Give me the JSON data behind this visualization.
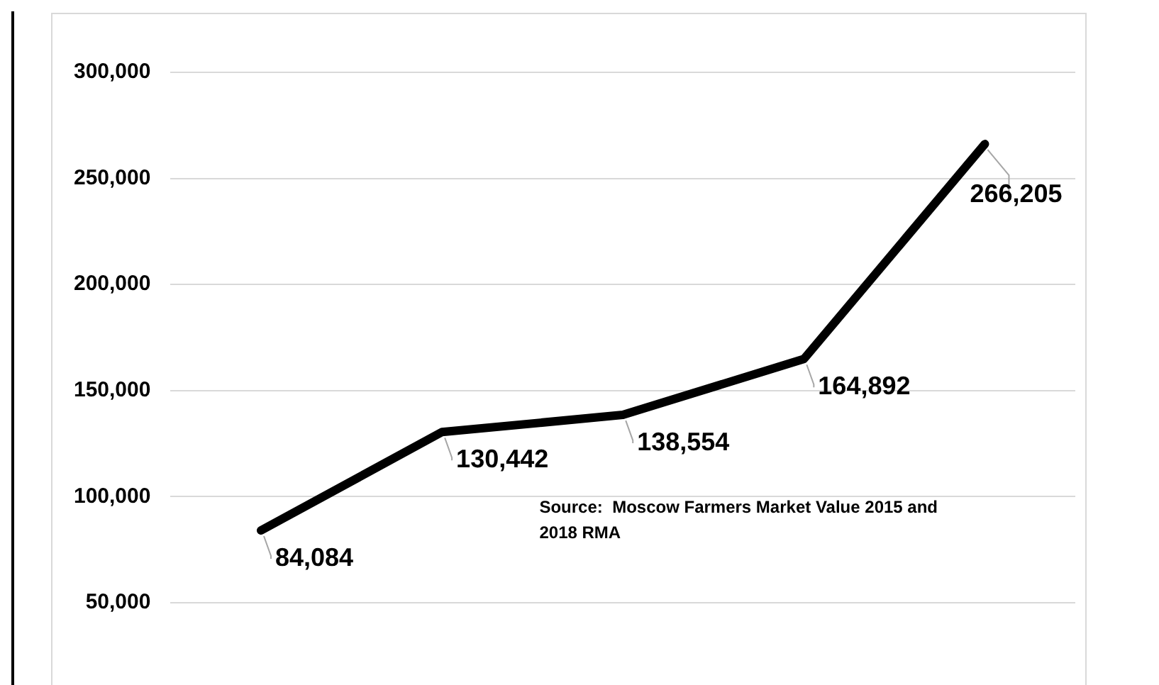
{
  "chart_data": {
    "type": "line",
    "categories": [
      null,
      null,
      null,
      null,
      null
    ],
    "series": [
      {
        "color": "#000000",
        "values": [
          84084,
          130442,
          138554,
          164892,
          266205
        ],
        "value_labels": [
          "84,084",
          "130,442",
          "138,554",
          "164,892",
          "266,205"
        ]
      }
    ],
    "ylim": [
      50000,
      300000
    ],
    "yticks": [
      {
        "value": 50000,
        "label": "50,000"
      },
      {
        "value": 100000,
        "label": "100,000"
      },
      {
        "value": 150000,
        "label": "150,000"
      },
      {
        "value": 200000,
        "label": "200,000"
      },
      {
        "value": 250000,
        "label": "250,000"
      },
      {
        "value": 300000,
        "label": "300,000"
      }
    ],
    "grid": "y",
    "legend": false,
    "marker": "none",
    "line_style": "solid",
    "annotations": [
      "Source:  Moscow Farmers Market Value 2015 and 2018 RMA"
    ]
  }
}
